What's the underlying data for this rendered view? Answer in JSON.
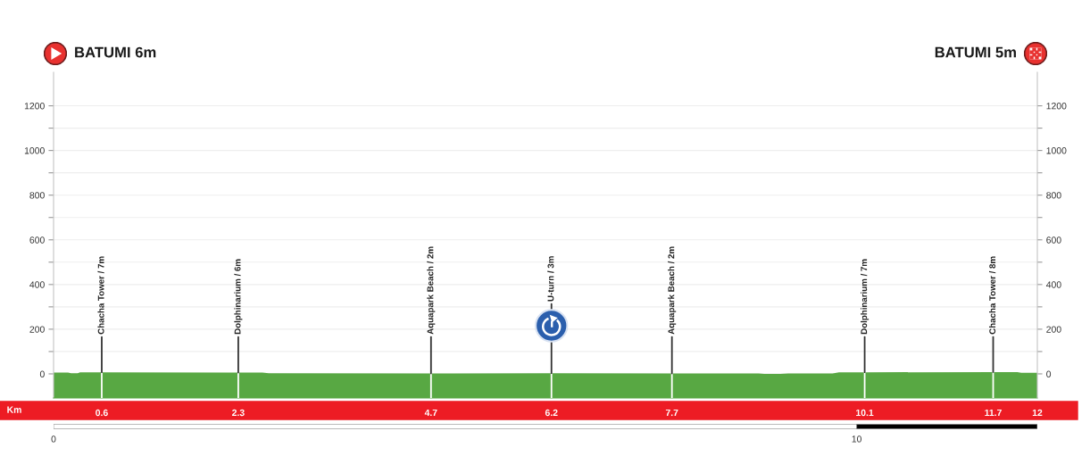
{
  "chart_data": {
    "type": "area",
    "x": [
      0,
      0.18,
      0.22,
      0.3,
      0.33,
      0.6,
      2.3,
      2.6,
      2.68,
      4.7,
      6.2,
      7.7,
      8.78,
      8.85,
      9.05,
      9.15,
      9.7,
      9.78,
      10.1,
      11.7,
      12.0,
      12.05,
      12.25
    ],
    "series": [
      {
        "color": "#58a843",
        "values": [
          6,
          6,
          3,
          3,
          7,
          7,
          6,
          6,
          3,
          2,
          3,
          2,
          2,
          0,
          0,
          2,
          2,
          7,
          7,
          8,
          8,
          5,
          5
        ]
      }
    ],
    "bands": [
      {
        "axis": "y",
        "from": -108,
        "to": 0,
        "color": "#58a843"
      }
    ],
    "xlabel": "Km",
    "xlim": [
      0,
      12.25
    ],
    "xticks": [
      0.6,
      2.3,
      4.7,
      6.2,
      7.7,
      10.1,
      11.7,
      {
        "value": 12.25,
        "label": "12"
      }
    ],
    "x2lim": [
      0,
      12.25
    ],
    "x2ticks": [
      0,
      10
    ],
    "ylim": [
      -108,
      1350
    ],
    "yticks": [
      0,
      {
        "value": 100,
        "label": null
      },
      200,
      {
        "value": 300,
        "label": null
      },
      400,
      {
        "value": 500,
        "label": null
      },
      600,
      {
        "value": 700,
        "label": null
      },
      800,
      {
        "value": 900,
        "label": null
      },
      1000,
      {
        "value": 1100,
        "label": null
      },
      1200
    ],
    "y2lim": [
      -108,
      1350
    ],
    "y2ticks": [
      0,
      {
        "value": 100,
        "label": null
      },
      200,
      {
        "value": 300,
        "label": null
      },
      400,
      {
        "value": 500,
        "label": null
      },
      600,
      {
        "value": 700,
        "label": null
      },
      800,
      {
        "value": 900,
        "label": null
      },
      1000,
      {
        "value": 1100,
        "label": null
      },
      1200
    ],
    "grid": "y",
    "annotations": [
      "BATUMI 6m",
      "BATUMI 5m",
      {
        "text": "Chacha Tower / 7m",
        "x": 0.6,
        "y": 7
      },
      {
        "text": "Dolphinarium / 6m",
        "x": 2.3,
        "y": 6
      },
      {
        "text": "Aquapark Beach / 2m",
        "x": 4.7,
        "y": 2
      },
      {
        "text": "U-turn / 3m",
        "x": 6.2,
        "y": 3
      },
      {
        "text": "Aquapark Beach / 2m",
        "x": 7.7,
        "y": 2
      },
      {
        "text": "Dolphinarium / 7m",
        "x": 10.1,
        "y": 7
      },
      {
        "text": "Chacha Tower / 8m",
        "x": 11.7,
        "y": 8
      }
    ]
  }
}
